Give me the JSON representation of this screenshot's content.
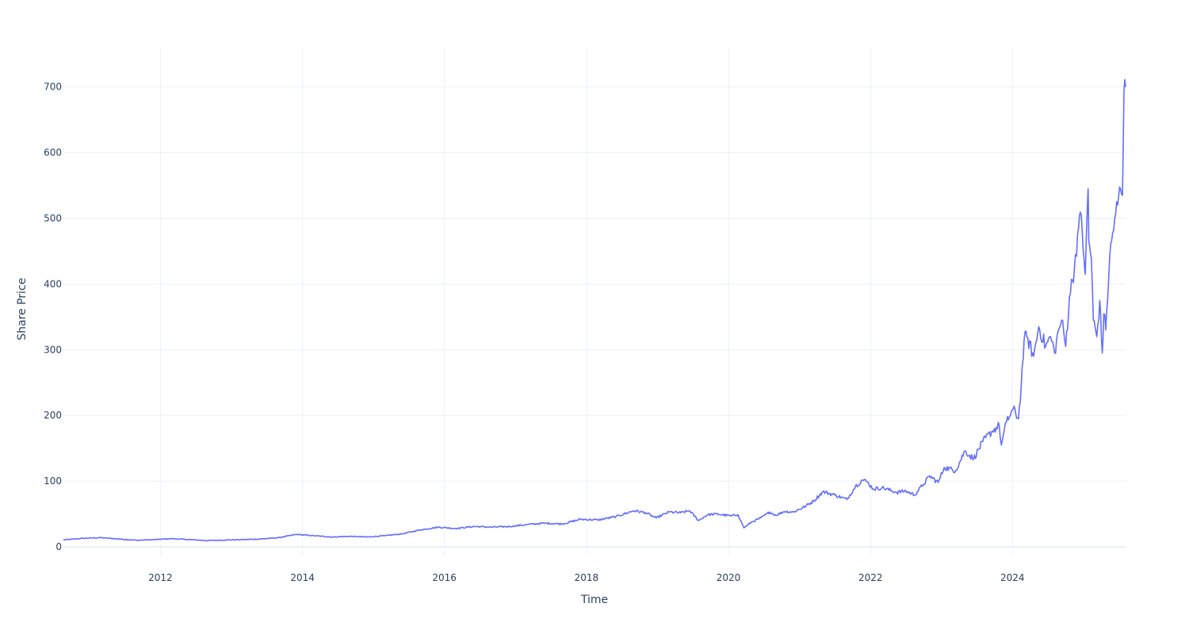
{
  "chart_data": {
    "type": "line",
    "xlabel": "Time",
    "ylabel": "Share Price",
    "x_range": [
      "2010-08-20",
      "2025-08-05"
    ],
    "ylim": [
      -12,
      760
    ],
    "x_ticks": [
      {
        "date": "2012-01-01",
        "label": "2012"
      },
      {
        "date": "2014-01-01",
        "label": "2014"
      },
      {
        "date": "2016-01-01",
        "label": "2016"
      },
      {
        "date": "2018-01-01",
        "label": "2018"
      },
      {
        "date": "2020-01-01",
        "label": "2020"
      },
      {
        "date": "2022-01-01",
        "label": "2022"
      },
      {
        "date": "2024-01-01",
        "label": "2024"
      }
    ],
    "y_ticks": [
      0,
      100,
      200,
      300,
      400,
      500,
      600,
      700
    ],
    "grid": true,
    "colors": {
      "line": "#636efa",
      "grid": "#ebf0f8",
      "text": "#2a3f5f"
    },
    "series": [
      {
        "x": [
          "2010-08-20",
          "2010-12-01",
          "2011-03-01",
          "2011-06-01",
          "2011-09-01",
          "2011-12-01",
          "2012-03-01",
          "2012-06-01",
          "2012-09-01",
          "2012-12-01",
          "2013-03-01",
          "2013-06-01",
          "2013-09-01",
          "2013-12-01",
          "2014-03-01",
          "2014-06-01",
          "2014-09-01",
          "2014-12-01",
          "2015-03-01",
          "2015-06-01",
          "2015-09-01",
          "2015-12-01",
          "2016-03-01",
          "2016-06-01",
          "2016-09-01",
          "2016-12-01",
          "2017-03-01",
          "2017-06-01",
          "2017-09-01",
          "2017-12-01",
          "2018-03-01",
          "2018-06-01",
          "2018-09-01",
          "2018-11-01",
          "2018-12-25",
          "2019-03-01",
          "2019-05-01",
          "2019-06-15",
          "2019-08-01",
          "2019-09-15",
          "2019-11-01",
          "2020-01-15",
          "2020-02-20",
          "2020-03-20",
          "2020-05-01",
          "2020-06-15",
          "2020-08-01",
          "2020-09-01",
          "2020-10-15",
          "2020-12-01",
          "2021-02-01",
          "2021-03-15",
          "2021-05-01",
          "2021-07-01",
          "2021-09-01",
          "2021-10-15",
          "2021-11-20",
          "2021-12-15",
          "2022-01-15",
          "2022-03-01",
          "2022-05-15",
          "2022-07-01",
          "2022-08-15",
          "2022-09-30",
          "2022-11-01",
          "2022-12-15",
          "2023-01-15",
          "2023-03-15",
          "2023-05-01",
          "2023-06-15",
          "2023-08-01",
          "2023-09-15",
          "2023-10-25",
          "2023-11-05",
          "2023-12-01",
          "2024-01-05",
          "2024-02-01",
          "2024-02-15",
          "2024-03-01",
          "2024-03-15",
          "2024-04-19",
          "2024-05-15",
          "2024-06-20",
          "2024-07-15",
          "2024-08-05",
          "2024-08-25",
          "2024-09-10",
          "2024-10-01",
          "2024-10-20",
          "2024-11-15",
          "2024-12-01",
          "2024-12-20",
          "2025-01-03",
          "2025-01-10",
          "2025-01-24",
          "2025-01-28",
          "2025-02-10",
          "2025-02-20",
          "2025-03-10",
          "2025-03-25",
          "2025-04-07",
          "2025-04-15",
          "2025-04-25",
          "2025-05-15",
          "2025-06-10",
          "2025-06-25",
          "2025-07-10",
          "2025-07-20",
          "2025-07-28",
          "2025-08-05"
        ],
        "y": [
          10.5,
          13,
          14,
          12,
          10,
          11,
          12.5,
          11,
          9.5,
          10.5,
          11,
          12,
          14,
          19,
          17,
          15,
          16,
          15,
          17,
          20,
          26,
          30,
          28,
          31,
          30,
          31,
          34,
          36,
          35,
          42,
          41,
          46,
          55,
          52,
          44,
          53,
          52,
          55,
          40,
          49,
          50,
          47,
          49,
          29,
          38,
          44,
          53,
          48,
          54,
          53,
          62,
          70,
          84,
          79,
          72,
          92,
          102,
          99,
          88,
          90,
          83,
          85,
          79,
          95,
          108,
          98,
          121,
          116,
          146,
          134,
          160,
          175,
          185,
          155,
          190,
          210,
          195,
          245,
          315,
          320,
          290,
          335,
          305,
          320,
          295,
          330,
          345,
          305,
          380,
          425,
          475,
          505,
          440,
          415,
          545,
          465,
          440,
          345,
          320,
          375,
          295,
          355,
          330,
          440,
          500,
          520,
          545,
          535,
          695,
          700
        ]
      }
    ]
  }
}
